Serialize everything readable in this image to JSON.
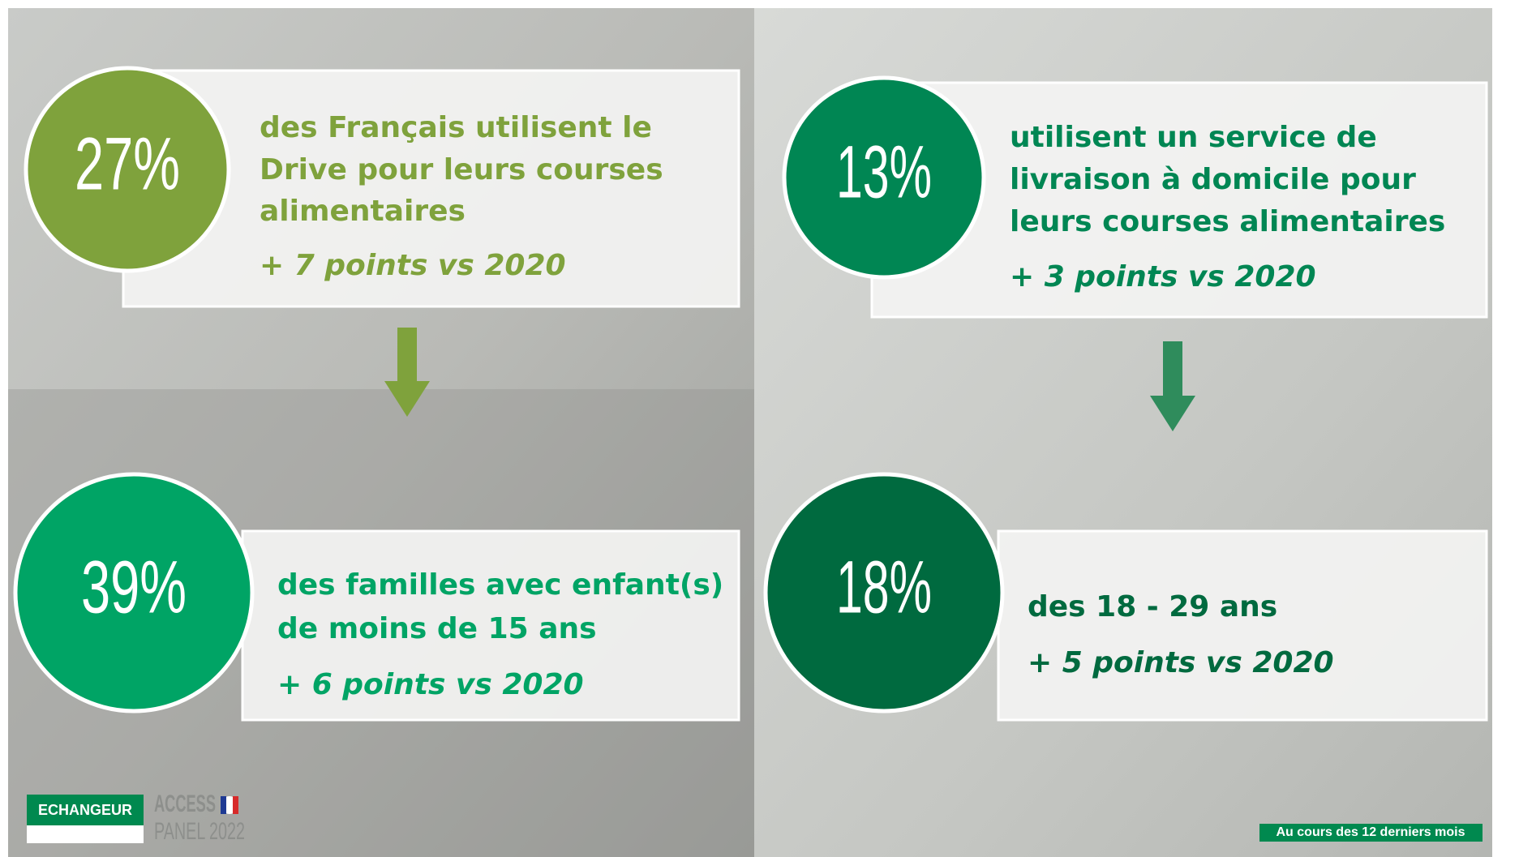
{
  "left": {
    "top": {
      "percent": "27%",
      "lines": [
        "des Français utilisent le",
        "Drive pour leurs courses",
        "alimentaires"
      ],
      "change": "+ 7 points vs 2020"
    },
    "bottom": {
      "percent": "39%",
      "lines": [
        "des familles avec enfant(s)",
        "de moins de 15 ans"
      ],
      "change": "+ 6 points vs 2020"
    }
  },
  "right": {
    "top": {
      "percent": "13%",
      "lines": [
        "utilisent un service de",
        "livraison à domicile pour",
        "leurs courses alimentaires"
      ],
      "change": "+ 3 points vs 2020"
    },
    "bottom": {
      "percent": "18%",
      "lines": [
        "des 18 - 29 ans"
      ],
      "change": "+ 5 points vs 2020"
    }
  },
  "footer": {
    "logo": "ECHANGEUR",
    "panel_line1": "ACCESS",
    "panel_line2": "PANEL 2022",
    "note": "Au cours des 12 derniers mois"
  }
}
